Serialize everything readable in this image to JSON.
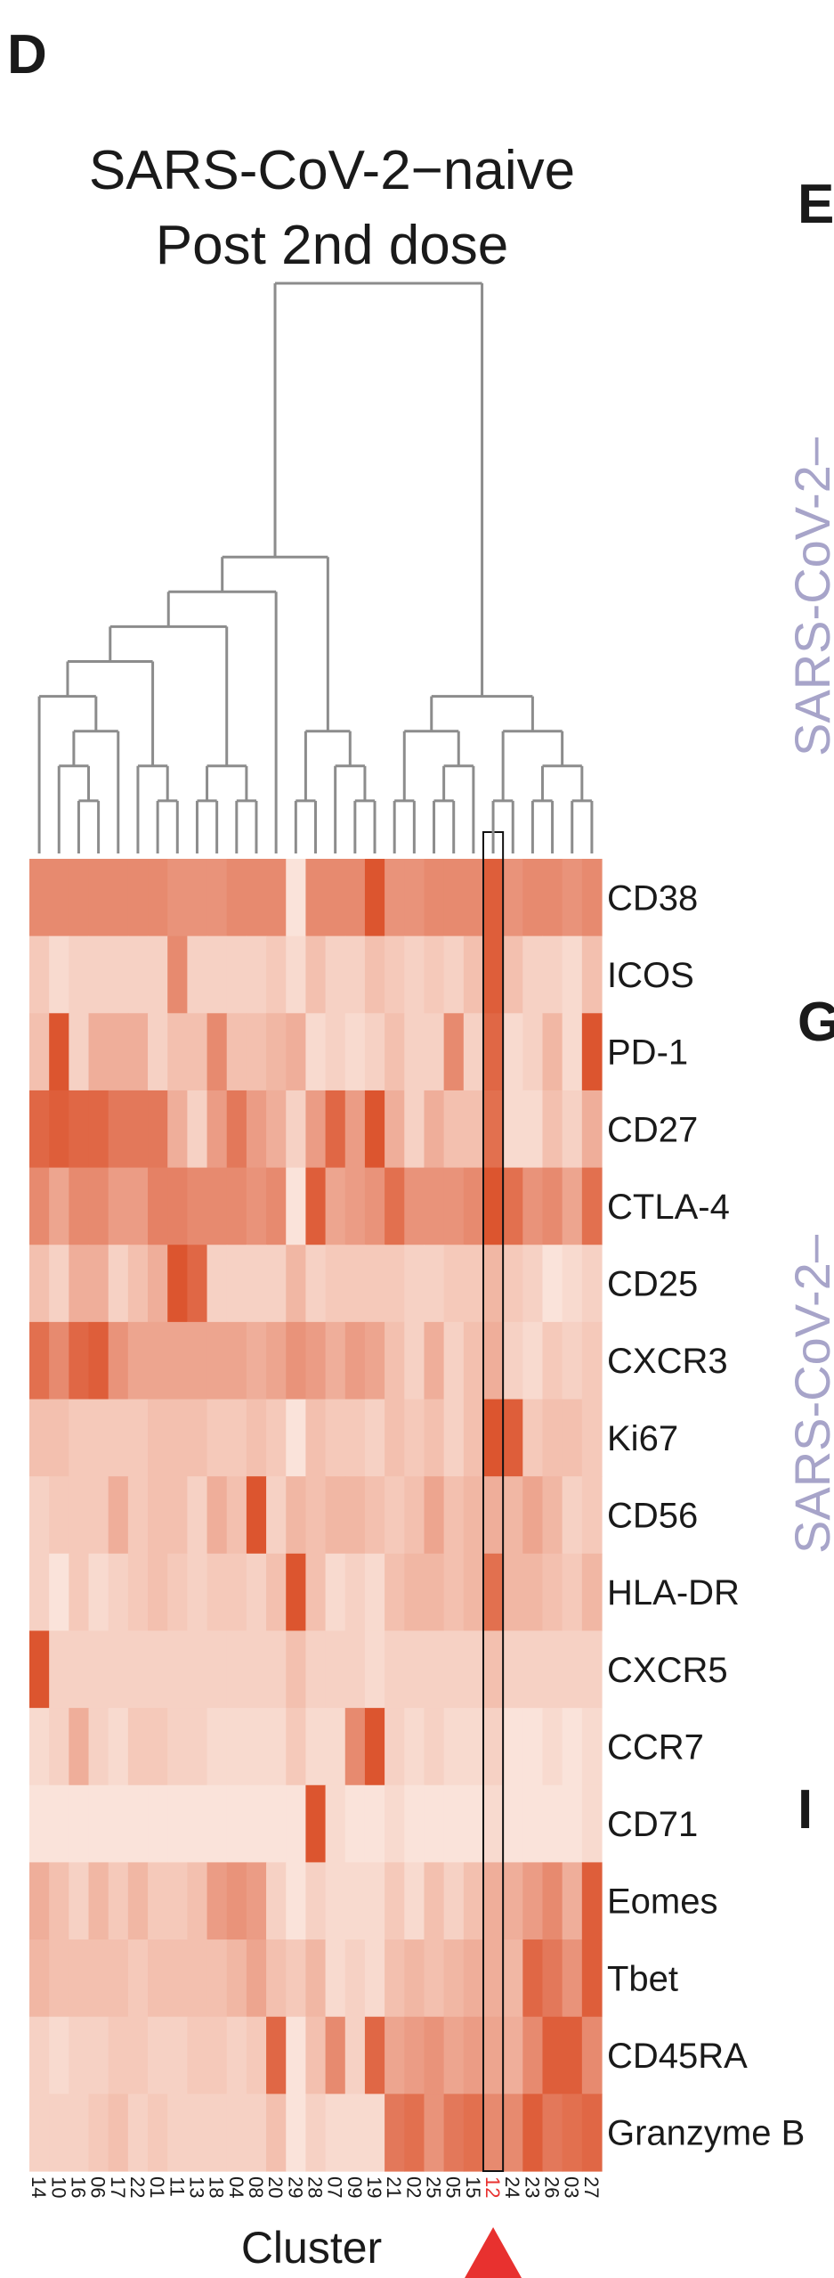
{
  "panel_labels": [
    "D",
    "E",
    "G",
    "I"
  ],
  "side_labels": [
    "SARS-CoV-2–",
    "SARS-CoV-2–"
  ],
  "chart_data": {
    "type": "heatmap",
    "title": "SARS-CoV-2−naive",
    "subtitle": "Post 2nd dose",
    "x_label": "Cluster",
    "columns": [
      "14",
      "10",
      "16",
      "06",
      "17",
      "22",
      "01",
      "11",
      "13",
      "18",
      "04",
      "08",
      "20",
      "29",
      "28",
      "07",
      "09",
      "19",
      "21",
      "02",
      "25",
      "05",
      "15",
      "12",
      "24",
      "23",
      "26",
      "03",
      "27"
    ],
    "rows": [
      "CD38",
      "ICOS",
      "PD-1",
      "CD27",
      "CTLA-4",
      "CD25",
      "CXCR3",
      "Ki67",
      "CD56",
      "HLA-DR",
      "CXCR5",
      "CCR7",
      "CD71",
      "Eomes",
      "Tbet",
      "CD45RA",
      "Granzyme B"
    ],
    "values": [
      [
        0.6,
        0.6,
        0.6,
        0.6,
        0.6,
        0.6,
        0.6,
        0.55,
        0.55,
        0.55,
        0.6,
        0.6,
        0.6,
        0.1,
        0.6,
        0.6,
        0.6,
        0.9,
        0.55,
        0.55,
        0.6,
        0.6,
        0.6,
        0.85,
        0.55,
        0.6,
        0.6,
        0.55,
        0.6
      ],
      [
        0.25,
        0.15,
        0.2,
        0.2,
        0.2,
        0.2,
        0.2,
        0.6,
        0.2,
        0.2,
        0.2,
        0.2,
        0.25,
        0.15,
        0.3,
        0.2,
        0.2,
        0.3,
        0.25,
        0.2,
        0.25,
        0.2,
        0.3,
        0.85,
        0.3,
        0.2,
        0.2,
        0.15,
        0.3
      ],
      [
        0.3,
        0.9,
        0.2,
        0.4,
        0.4,
        0.4,
        0.2,
        0.3,
        0.3,
        0.6,
        0.3,
        0.3,
        0.35,
        0.4,
        0.15,
        0.2,
        0.15,
        0.2,
        0.3,
        0.2,
        0.2,
        0.6,
        0.2,
        0.8,
        0.15,
        0.2,
        0.35,
        0.15,
        0.9
      ],
      [
        0.8,
        0.85,
        0.8,
        0.8,
        0.7,
        0.7,
        0.7,
        0.4,
        0.2,
        0.5,
        0.7,
        0.5,
        0.4,
        0.2,
        0.5,
        0.8,
        0.5,
        0.9,
        0.4,
        0.2,
        0.4,
        0.3,
        0.3,
        0.75,
        0.15,
        0.15,
        0.3,
        0.2,
        0.4
      ],
      [
        0.6,
        0.45,
        0.6,
        0.6,
        0.5,
        0.5,
        0.65,
        0.65,
        0.6,
        0.6,
        0.6,
        0.55,
        0.6,
        0.1,
        0.85,
        0.45,
        0.5,
        0.55,
        0.75,
        0.55,
        0.55,
        0.55,
        0.6,
        0.9,
        0.75,
        0.55,
        0.6,
        0.45,
        0.75
      ],
      [
        0.3,
        0.2,
        0.4,
        0.4,
        0.2,
        0.3,
        0.4,
        0.9,
        0.8,
        0.2,
        0.2,
        0.2,
        0.2,
        0.35,
        0.2,
        0.25,
        0.25,
        0.25,
        0.25,
        0.2,
        0.2,
        0.25,
        0.25,
        0.35,
        0.25,
        0.2,
        0.1,
        0.15,
        0.2
      ],
      [
        0.75,
        0.6,
        0.8,
        0.85,
        0.55,
        0.45,
        0.45,
        0.45,
        0.45,
        0.45,
        0.45,
        0.4,
        0.45,
        0.55,
        0.5,
        0.4,
        0.5,
        0.45,
        0.3,
        0.2,
        0.4,
        0.2,
        0.3,
        0.4,
        0.2,
        0.15,
        0.25,
        0.2,
        0.25
      ],
      [
        0.3,
        0.3,
        0.25,
        0.25,
        0.25,
        0.25,
        0.3,
        0.3,
        0.3,
        0.25,
        0.25,
        0.3,
        0.25,
        0.1,
        0.3,
        0.25,
        0.25,
        0.2,
        0.3,
        0.25,
        0.3,
        0.2,
        0.3,
        0.9,
        0.85,
        0.25,
        0.3,
        0.3,
        0.25
      ],
      [
        0.2,
        0.25,
        0.25,
        0.25,
        0.4,
        0.25,
        0.3,
        0.3,
        0.2,
        0.4,
        0.3,
        0.9,
        0.2,
        0.35,
        0.3,
        0.35,
        0.35,
        0.3,
        0.25,
        0.3,
        0.45,
        0.3,
        0.35,
        0.4,
        0.35,
        0.45,
        0.35,
        0.2,
        0.25
      ],
      [
        0.2,
        0.1,
        0.25,
        0.15,
        0.2,
        0.25,
        0.3,
        0.25,
        0.2,
        0.25,
        0.25,
        0.2,
        0.3,
        0.9,
        0.3,
        0.15,
        0.2,
        0.15,
        0.3,
        0.35,
        0.35,
        0.3,
        0.35,
        0.75,
        0.35,
        0.35,
        0.3,
        0.25,
        0.35
      ],
      [
        0.9,
        0.2,
        0.2,
        0.2,
        0.2,
        0.2,
        0.2,
        0.2,
        0.2,
        0.2,
        0.2,
        0.2,
        0.2,
        0.3,
        0.2,
        0.2,
        0.2,
        0.15,
        0.2,
        0.2,
        0.2,
        0.2,
        0.2,
        0.3,
        0.2,
        0.2,
        0.2,
        0.2,
        0.2
      ],
      [
        0.15,
        0.2,
        0.4,
        0.2,
        0.15,
        0.25,
        0.25,
        0.2,
        0.2,
        0.15,
        0.15,
        0.15,
        0.15,
        0.25,
        0.15,
        0.15,
        0.6,
        0.9,
        0.2,
        0.15,
        0.2,
        0.15,
        0.15,
        0.2,
        0.1,
        0.1,
        0.15,
        0.1,
        0.15
      ],
      [
        0.1,
        0.1,
        0.1,
        0.1,
        0.1,
        0.1,
        0.1,
        0.1,
        0.1,
        0.1,
        0.1,
        0.1,
        0.1,
        0.1,
        0.9,
        0.15,
        0.1,
        0.1,
        0.15,
        0.1,
        0.1,
        0.1,
        0.1,
        0.15,
        0.1,
        0.1,
        0.1,
        0.1,
        0.15
      ],
      [
        0.4,
        0.3,
        0.2,
        0.35,
        0.25,
        0.35,
        0.25,
        0.25,
        0.3,
        0.5,
        0.55,
        0.5,
        0.2,
        0.1,
        0.2,
        0.15,
        0.15,
        0.15,
        0.25,
        0.15,
        0.3,
        0.2,
        0.3,
        0.4,
        0.4,
        0.5,
        0.6,
        0.4,
        0.85
      ],
      [
        0.35,
        0.3,
        0.3,
        0.3,
        0.3,
        0.25,
        0.3,
        0.3,
        0.3,
        0.3,
        0.35,
        0.45,
        0.3,
        0.25,
        0.35,
        0.15,
        0.2,
        0.15,
        0.3,
        0.35,
        0.3,
        0.35,
        0.4,
        0.4,
        0.35,
        0.8,
        0.7,
        0.55,
        0.85
      ],
      [
        0.2,
        0.15,
        0.2,
        0.2,
        0.25,
        0.25,
        0.2,
        0.2,
        0.25,
        0.25,
        0.2,
        0.25,
        0.8,
        0.1,
        0.3,
        0.6,
        0.2,
        0.8,
        0.45,
        0.5,
        0.55,
        0.45,
        0.5,
        0.45,
        0.4,
        0.6,
        0.85,
        0.85,
        0.6
      ],
      [
        0.2,
        0.2,
        0.2,
        0.25,
        0.3,
        0.2,
        0.25,
        0.2,
        0.2,
        0.2,
        0.2,
        0.2,
        0.3,
        0.1,
        0.2,
        0.15,
        0.15,
        0.15,
        0.7,
        0.75,
        0.55,
        0.7,
        0.75,
        0.6,
        0.6,
        0.85,
        0.7,
        0.75,
        0.8
      ]
    ],
    "colormap": [
      "#fef5ef",
      "#d8431a"
    ],
    "highlight": 23,
    "highlight_color": "#e8312f"
  }
}
